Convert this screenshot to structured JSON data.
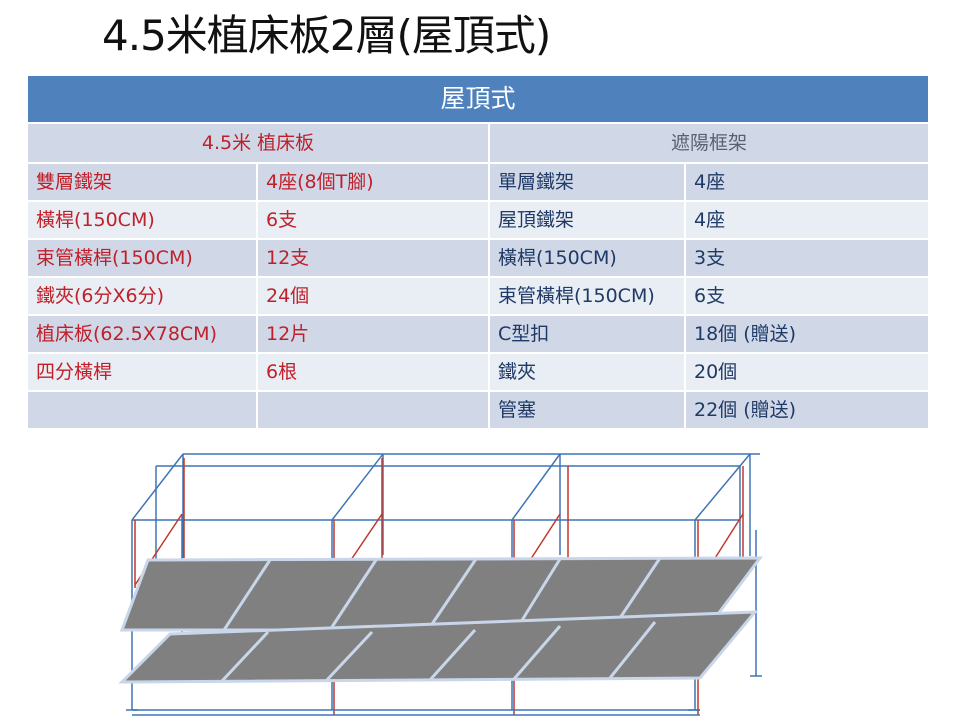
{
  "title": "4.5米植床板2層(屋頂式)",
  "table": {
    "header": "屋頂式",
    "left_group": "4.5米 植床板",
    "right_group": "遮陽框架",
    "rows": [
      {
        "l_item": "雙層鐵架",
        "l_qty": "4座(8個T腳)",
        "r_item": "單層鐵架",
        "r_qty": "4座"
      },
      {
        "l_item": "橫桿(150CM)",
        "l_qty": "6支",
        "r_item": "屋頂鐵架",
        "r_qty": "4座"
      },
      {
        "l_item": "束管橫桿(150CM)",
        "l_qty": "12支",
        "r_item": "橫桿(150CM)",
        "r_qty": "3支"
      },
      {
        "l_item": "鐵夾(6分X6分)",
        "l_qty": "24個",
        "r_item": "束管橫桿(150CM)",
        "r_qty": "6支"
      },
      {
        "l_item": "植床板(62.5X78CM)",
        "l_qty": "12片",
        "r_item": "C型扣",
        "r_qty": "18個 (贈送)"
      },
      {
        "l_item": "四分橫桿",
        "l_qty": "6根",
        "r_item": "鐵夾",
        "r_qty": "20個"
      },
      {
        "l_item": "",
        "l_qty": "",
        "r_item": "管塞",
        "r_qty": "22個 (贈送)"
      }
    ]
  },
  "colors": {
    "header_blue": "#4f81bd",
    "row_dark": "#d0d8e8",
    "row_light": "#e9edf4",
    "left_text_red": "#c0202a",
    "frame_red": "#c0392b",
    "frame_blue": "#3f74b5",
    "panel_grey": "#808080",
    "panel_edge": "#c9d6ea"
  }
}
